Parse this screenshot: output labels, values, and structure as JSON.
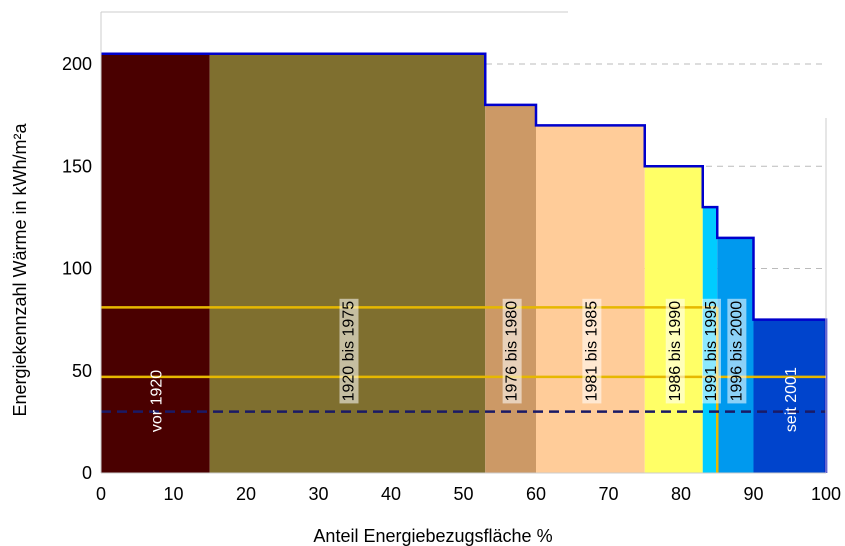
{
  "chart_data": {
    "type": "bar",
    "xlabel": "Anteil Energiebezugsfläche %",
    "ylabel": "Energiekennzahl Wärme in kWh/m²a",
    "xlim": [
      0,
      100
    ],
    "ylim": [
      0,
      200
    ],
    "x_ticks": [
      "0",
      "10",
      "20",
      "30",
      "40",
      "50",
      "60",
      "70",
      "80",
      "90",
      "100"
    ],
    "y_ticks": [
      "0",
      "50",
      "100",
      "150",
      "200"
    ],
    "grid": "dashed horizontal",
    "bars": [
      {
        "label": "vor 1920",
        "x_start": 0,
        "x_end": 15,
        "value": 205,
        "color": "#4a0000",
        "label_color": "#ffffff",
        "label_box": false
      },
      {
        "label": "1920 bis 1975",
        "x_start": 15,
        "x_end": 53,
        "value": 205,
        "color": "#7f6f2f",
        "label_color": "#000000",
        "label_box": true
      },
      {
        "label": "1976 bis 1980",
        "x_start": 53,
        "x_end": 60,
        "value": 180,
        "color": "#cc9966",
        "label_color": "#000000",
        "label_box": true
      },
      {
        "label": "1981 bis 1985",
        "x_start": 60,
        "x_end": 75,
        "value": 170,
        "color": "#ffcc99",
        "label_color": "#000000",
        "label_box": true
      },
      {
        "label": "1986 bis 1990",
        "x_start": 75,
        "x_end": 83,
        "value": 150,
        "color": "#ffff66",
        "label_color": "#000000",
        "label_box": true
      },
      {
        "label": "1991 bis 1995",
        "x_start": 83,
        "x_end": 85,
        "value": 130,
        "color": "#00ccff",
        "label_color": "#000000",
        "label_box": true
      },
      {
        "label": "1996 bis 2000",
        "x_start": 85,
        "x_end": 90,
        "value": 115,
        "color": "#0099ee",
        "label_color": "#000000",
        "label_box": true
      },
      {
        "label": "seit 2001",
        "x_start": 90,
        "x_end": 100,
        "value": 75,
        "color": "#0044cc",
        "label_color": "#ffffff",
        "label_box": false
      }
    ],
    "reference_lines": [
      {
        "style": "solid",
        "color": "#e6b800",
        "y": 81,
        "x_start": 0,
        "x_end": 85
      },
      {
        "style": "solid",
        "color": "#e6b800",
        "y": 47,
        "x_start": 0,
        "x_end": 100
      },
      {
        "style": "dashed",
        "color": "#1a1a66",
        "y": 30,
        "x_start": 0,
        "x_end": 100
      }
    ],
    "outline_color": "#0000cc"
  }
}
